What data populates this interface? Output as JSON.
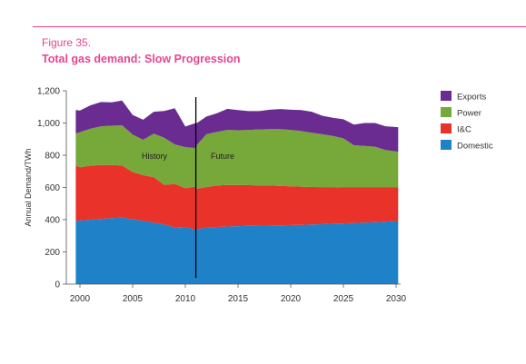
{
  "figure": {
    "number": "Figure 35.",
    "title": "Total gas demand: Slow Progression",
    "accent_color": "#e8458f"
  },
  "chart_data": {
    "type": "area",
    "stacked": true,
    "ylabel": "Annual Demand/TWh",
    "xlabel": "",
    "ylim": [
      0,
      1200
    ],
    "xlim": [
      2000,
      2030
    ],
    "y_ticks": [
      "0",
      "200",
      "400",
      "600",
      "800",
      "1,000",
      "1,200"
    ],
    "x_ticks": [
      "2000",
      "2005",
      "2010",
      "2015",
      "2020",
      "2025",
      "2030"
    ],
    "grid": false,
    "legend_position": "right",
    "divider_year": 2011,
    "annotations": [
      "History",
      "Future"
    ],
    "x": [
      1999.6,
      2000,
      2001,
      2002,
      2003,
      2004,
      2005,
      2006,
      2007,
      2008,
      2009,
      2010,
      2010.9,
      2011.1,
      2012,
      2013,
      2014,
      2015,
      2016,
      2017,
      2018,
      2019,
      2020,
      2021,
      2022,
      2023,
      2024,
      2025,
      2026,
      2027,
      2028,
      2029,
      2030.2
    ],
    "series": [
      {
        "name": "Domestic",
        "color": "#1f82c9",
        "values": [
          392,
          395,
          400,
          405,
          410,
          413,
          403,
          393,
          382,
          370,
          352,
          355,
          340,
          342,
          350,
          355,
          358,
          360,
          362,
          363,
          364,
          365,
          367,
          368,
          370,
          372,
          375,
          377,
          380,
          382,
          385,
          388,
          392
        ]
      },
      {
        "name": "I&C",
        "color": "#e8322a",
        "values": [
          343,
          330,
          335,
          335,
          330,
          323,
          293,
          283,
          282,
          245,
          270,
          240,
          265,
          250,
          252,
          257,
          257,
          255,
          252,
          250,
          248,
          245,
          240,
          237,
          233,
          230,
          227,
          223,
          220,
          218,
          215,
          212,
          208
        ]
      },
      {
        "name": "Power",
        "color": "#76a83a",
        "values": [
          200,
          218,
          230,
          240,
          243,
          250,
          232,
          220,
          270,
          293,
          245,
          255,
          240,
          272,
          328,
          333,
          342,
          340,
          343,
          347,
          350,
          352,
          350,
          345,
          337,
          328,
          318,
          305,
          262,
          258,
          253,
          232,
          222
        ]
      },
      {
        "name": "Exports",
        "color": "#6a2c91",
        "values": [
          145,
          135,
          145,
          150,
          145,
          154,
          122,
          124,
          136,
          167,
          225,
          128,
          153,
          136,
          110,
          116,
          131,
          125,
          117,
          114,
          120,
          125,
          125,
          130,
          130,
          115,
          112,
          118,
          128,
          142,
          147,
          148,
          152
        ]
      }
    ]
  }
}
